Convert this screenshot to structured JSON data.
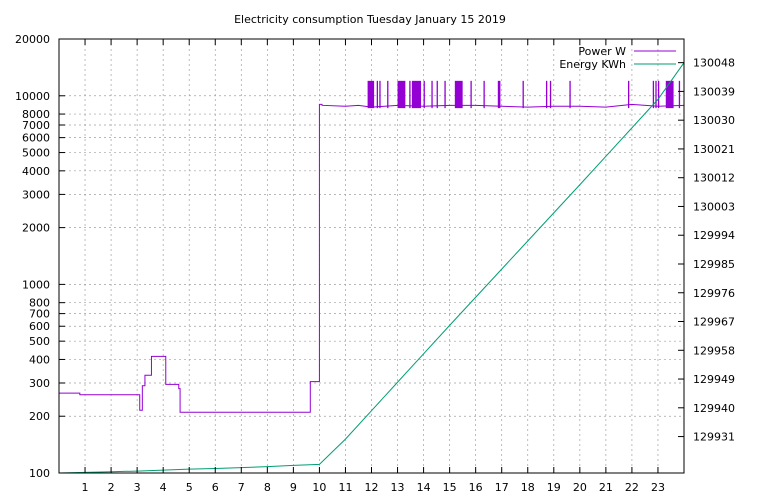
{
  "chart_data": {
    "type": "line",
    "title": "Electricity consumption Tuesday January 15 2019",
    "xlabel": "",
    "xlim": [
      0,
      24
    ],
    "x_ticks": [
      1,
      2,
      3,
      4,
      5,
      6,
      7,
      8,
      9,
      10,
      11,
      12,
      13,
      14,
      15,
      16,
      17,
      18,
      19,
      20,
      21,
      22,
      23
    ],
    "y_left": {
      "label": "",
      "scale": "log",
      "lim": [
        100,
        20000
      ],
      "ticks": [
        100,
        200,
        300,
        400,
        500,
        600,
        700,
        800,
        1000,
        2000,
        3000,
        4000,
        5000,
        6000,
        7000,
        8000,
        10000,
        20000
      ]
    },
    "y_right": {
      "label": "",
      "scale": "linear",
      "lim": [
        129919.6,
        130055.4
      ],
      "ticks": [
        129931,
        129940,
        129949,
        129958,
        129967,
        129976,
        129985,
        129994,
        130003,
        130012,
        130021,
        130030,
        130039,
        130048
      ]
    },
    "grid": true,
    "legend_position": "top-right",
    "series": [
      {
        "name": "Power W",
        "axis": "left",
        "color": "#9400d3",
        "step": true,
        "x": [
          0,
          0.8,
          0.8,
          3.1,
          3.1,
          3.2,
          3.2,
          3.3,
          3.3,
          3.55,
          3.55,
          4.1,
          4.1,
          4.6,
          4.6,
          4.65,
          4.65,
          9.65,
          9.65,
          10.0,
          10.0,
          10.1,
          10.1,
          11.0,
          11.5,
          12.0,
          13.0,
          14.0,
          15.0,
          16.0,
          17.0,
          18.0,
          19.0,
          20.0,
          21.0,
          22.0,
          23.0,
          24.0
        ],
        "y": [
          265,
          265,
          260,
          260,
          215,
          215,
          290,
          290,
          330,
          330,
          415,
          415,
          295,
          295,
          280,
          280,
          210,
          210,
          305,
          305,
          9000,
          9000,
          8900,
          8800,
          8900,
          8700,
          8900,
          8800,
          8900,
          8900,
          8800,
          8700,
          8800,
          8800,
          8700,
          9000,
          8800,
          8900
        ]
      },
      {
        "name": "Energy KWh",
        "axis": "right",
        "color": "#009e73",
        "x": [
          0,
          1,
          2,
          3,
          4,
          5,
          6,
          7,
          8,
          9,
          10,
          11,
          12,
          13,
          14,
          15,
          16,
          17,
          18,
          19,
          20,
          21,
          22,
          23,
          24
        ],
        "y": [
          129919.6,
          129919.8,
          129920.0,
          129920.2,
          129920.5,
          129920.8,
          129921.0,
          129921.3,
          129921.6,
          129922.0,
          129922.3,
          129930.2,
          129939.1,
          129948.0,
          129956.9,
          129965.8,
          129974.6,
          129983.4,
          129992.2,
          130001.0,
          130009.8,
          130018.7,
          130027.6,
          130036.5,
          130048.0
        ]
      }
    ],
    "power_spike_level": 12000,
    "power_spikes": [
      [
        11.85,
        12.1
      ],
      [
        12.2,
        12.25
      ],
      [
        12.3,
        12.35
      ],
      [
        12.6,
        12.65
      ],
      [
        13.0,
        13.3
      ],
      [
        13.45,
        13.5
      ],
      [
        13.55,
        13.9
      ],
      [
        14.0,
        14.05
      ],
      [
        14.3,
        14.35
      ],
      [
        14.5,
        14.55
      ],
      [
        14.8,
        14.85
      ],
      [
        15.2,
        15.5
      ],
      [
        15.8,
        15.85
      ],
      [
        16.3,
        16.35
      ],
      [
        16.85,
        16.95
      ],
      [
        17.8,
        17.85
      ],
      [
        18.7,
        18.75
      ],
      [
        18.85,
        18.9
      ],
      [
        19.6,
        19.65
      ],
      [
        21.85,
        21.9
      ],
      [
        22.8,
        22.85
      ],
      [
        22.9,
        22.95
      ],
      [
        23.0,
        23.05
      ],
      [
        23.3,
        23.6
      ],
      [
        23.8,
        23.85
      ]
    ]
  }
}
